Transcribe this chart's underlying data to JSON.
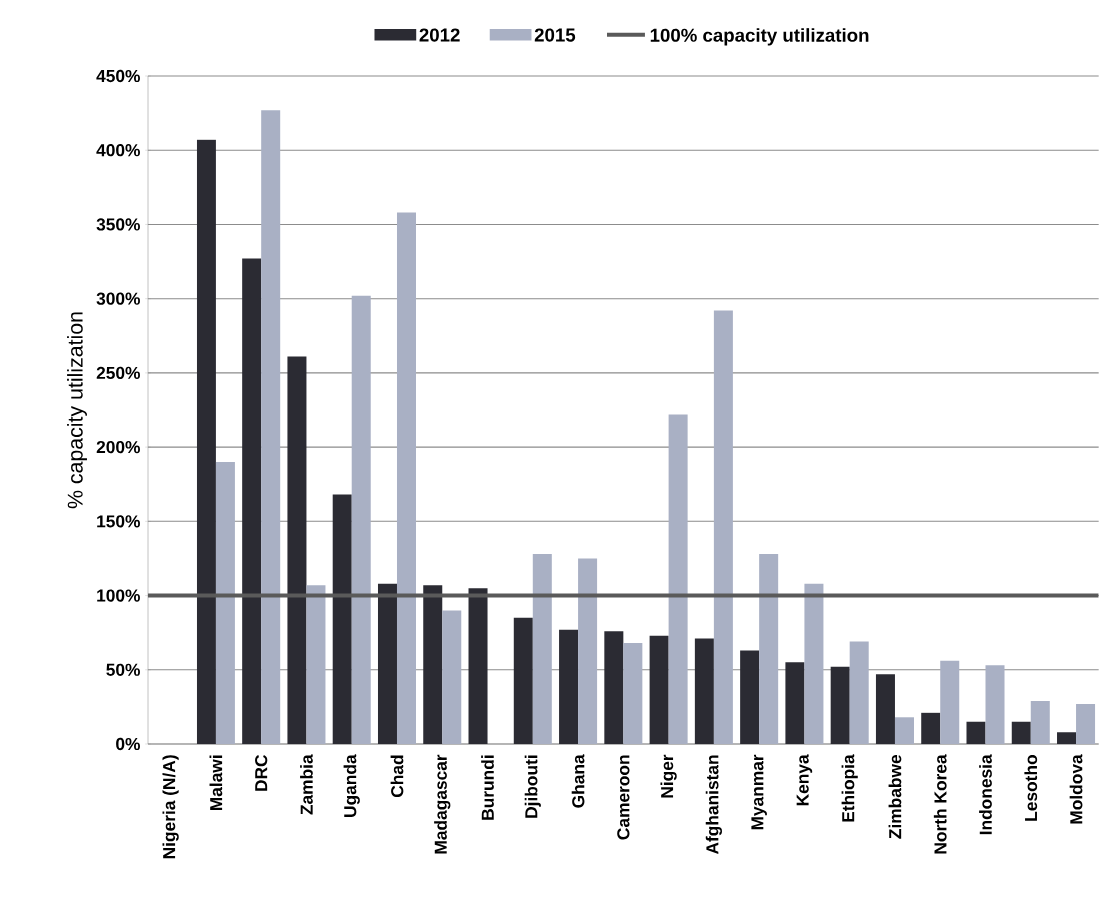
{
  "chart_data": {
    "type": "bar",
    "ylabel": "% capacity utilization",
    "categories": [
      "Nigeria (N/A)",
      "Malawi",
      "DRC",
      "Zambia",
      "Uganda",
      "Chad",
      "Madagascar",
      "Burundi",
      "Djibouti",
      "Ghana",
      "Cameroon",
      "Niger",
      "Afghanistan",
      "Myanmar",
      "Kenya",
      "Ethiopia",
      "Zimbabwe",
      "North Korea",
      "Indonesia",
      "Lesotho",
      "Moldova"
    ],
    "series": [
      {
        "name": "2012",
        "color": "#2b2b33",
        "values": [
          null,
          407,
          327,
          261,
          168,
          108,
          107,
          105,
          85,
          77,
          76,
          73,
          71,
          63,
          55,
          52,
          47,
          21,
          15,
          15,
          8
        ]
      },
      {
        "name": "2015",
        "color": "#a9b0c4",
        "values": [
          null,
          190,
          427,
          107,
          302,
          358,
          90,
          null,
          128,
          125,
          68,
          222,
          292,
          128,
          108,
          69,
          18,
          56,
          53,
          29,
          27
        ]
      }
    ],
    "ylim": [
      0,
      450
    ],
    "yticks": [
      {
        "value": 0,
        "label": "0%"
      },
      {
        "value": 50,
        "label": "50%"
      },
      {
        "value": 100,
        "label": "100%"
      },
      {
        "value": 150,
        "label": "150%"
      },
      {
        "value": 200,
        "label": "200%"
      },
      {
        "value": 250,
        "label": "250%"
      },
      {
        "value": 300,
        "label": "300%"
      },
      {
        "value": 350,
        "label": "350%"
      },
      {
        "value": 400,
        "label": "400%"
      },
      {
        "value": 450,
        "label": "450%"
      }
    ],
    "ref_lines": [
      {
        "axis": "y",
        "value": 100,
        "label": "100% capacity utilization",
        "color": "#5a5a5a"
      }
    ],
    "grid": "y",
    "legend": "top"
  }
}
